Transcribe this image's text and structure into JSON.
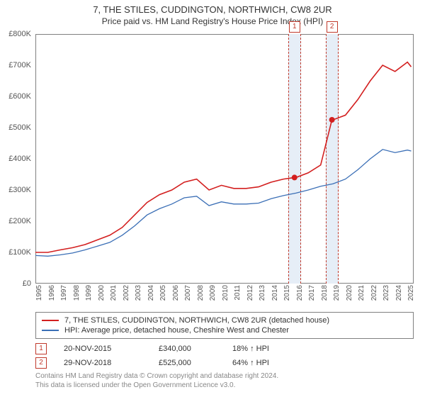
{
  "title": "7, THE STILES, CUDDINGTON, NORTHWICH, CW8 2UR",
  "subtitle": "Price paid vs. HM Land Registry's House Price Index (HPI)",
  "chart": {
    "type": "line",
    "xlim": [
      1995,
      2025.5
    ],
    "ylim": [
      0,
      800000
    ],
    "ytick_step": 100000,
    "ytick_prefix": "£",
    "ytick_suffix": "K",
    "xtick_step": 1,
    "background_color": "#ffffff",
    "border_color": "#808080",
    "band_color": "#e6eef7",
    "series": [
      {
        "name": "property",
        "label": "7, THE STILES, CUDDINGTON, NORTHWICH, CW8 2UR (detached house)",
        "color": "#d31f1f",
        "width": 1.6,
        "data": [
          [
            1995,
            100000
          ],
          [
            1996,
            100000
          ],
          [
            1997,
            108000
          ],
          [
            1998,
            115000
          ],
          [
            1999,
            125000
          ],
          [
            2000,
            140000
          ],
          [
            2001,
            155000
          ],
          [
            2002,
            180000
          ],
          [
            2003,
            220000
          ],
          [
            2004,
            260000
          ],
          [
            2005,
            285000
          ],
          [
            2006,
            300000
          ],
          [
            2007,
            325000
          ],
          [
            2008,
            335000
          ],
          [
            2009,
            300000
          ],
          [
            2010,
            315000
          ],
          [
            2011,
            305000
          ],
          [
            2012,
            305000
          ],
          [
            2013,
            310000
          ],
          [
            2014,
            325000
          ],
          [
            2015,
            335000
          ],
          [
            2015.89,
            340000
          ],
          [
            2016,
            340000
          ],
          [
            2017,
            355000
          ],
          [
            2018,
            380000
          ],
          [
            2018.91,
            525000
          ],
          [
            2019,
            525000
          ],
          [
            2020,
            540000
          ],
          [
            2021,
            590000
          ],
          [
            2022,
            650000
          ],
          [
            2023,
            700000
          ],
          [
            2024,
            680000
          ],
          [
            2025,
            710000
          ],
          [
            2025.3,
            695000
          ]
        ]
      },
      {
        "name": "hpi",
        "label": "HPI: Average price, detached house, Cheshire West and Chester",
        "color": "#3b6fb6",
        "width": 1.3,
        "data": [
          [
            1995,
            90000
          ],
          [
            1996,
            88000
          ],
          [
            1997,
            92000
          ],
          [
            1998,
            98000
          ],
          [
            1999,
            108000
          ],
          [
            2000,
            120000
          ],
          [
            2001,
            132000
          ],
          [
            2002,
            155000
          ],
          [
            2003,
            185000
          ],
          [
            2004,
            220000
          ],
          [
            2005,
            240000
          ],
          [
            2006,
            255000
          ],
          [
            2007,
            275000
          ],
          [
            2008,
            280000
          ],
          [
            2009,
            250000
          ],
          [
            2010,
            262000
          ],
          [
            2011,
            255000
          ],
          [
            2012,
            255000
          ],
          [
            2013,
            258000
          ],
          [
            2014,
            272000
          ],
          [
            2015,
            282000
          ],
          [
            2016,
            290000
          ],
          [
            2017,
            300000
          ],
          [
            2018,
            312000
          ],
          [
            2019,
            320000
          ],
          [
            2020,
            335000
          ],
          [
            2021,
            365000
          ],
          [
            2022,
            400000
          ],
          [
            2023,
            430000
          ],
          [
            2024,
            420000
          ],
          [
            2025,
            428000
          ],
          [
            2025.3,
            425000
          ]
        ]
      }
    ],
    "markers": [
      {
        "index": 1,
        "x": 2015.89,
        "y": 340000,
        "date": "20-NOV-2015",
        "price": "£340,000",
        "delta": "18% ↑ HPI"
      },
      {
        "index": 2,
        "x": 2018.91,
        "y": 525000,
        "date": "29-NOV-2018",
        "price": "£525,000",
        "delta": "64% ↑ HPI"
      }
    ]
  },
  "footer_line1": "Contains HM Land Registry data © Crown copyright and database right 2024.",
  "footer_line2": "This data is licensed under the Open Government Licence v3.0."
}
